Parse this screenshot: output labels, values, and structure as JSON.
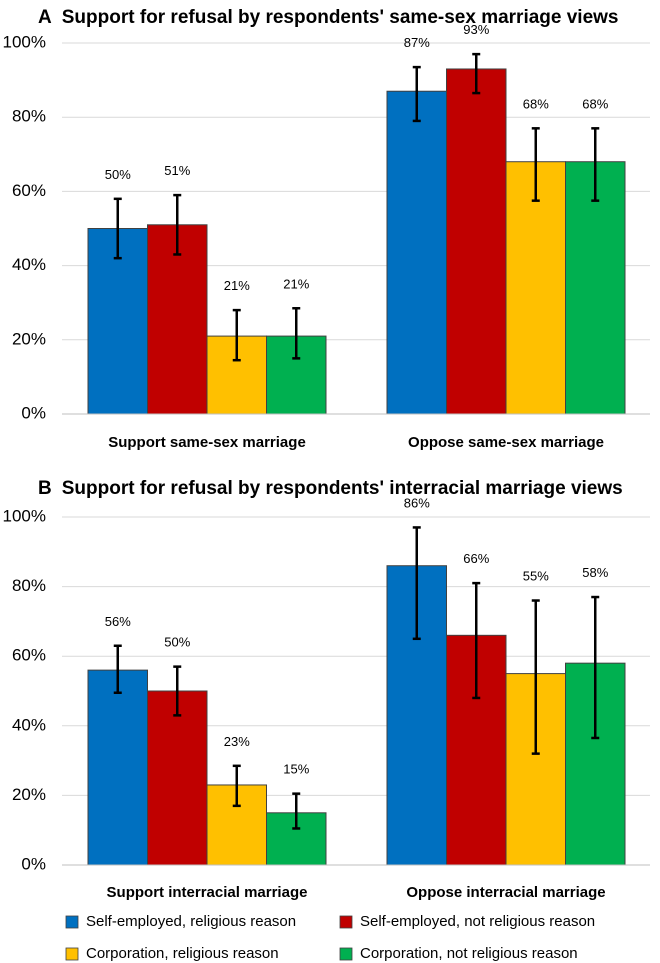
{
  "chart_data": [
    {
      "type": "bar",
      "panel_letter": "A",
      "title": "Support for refusal by respondents' same-sex marriage views",
      "categories": [
        "Support same-sex marriage",
        "Oppose same-sex marriage"
      ],
      "ylim": [
        0,
        100
      ],
      "yticks": [
        "0%",
        "20%",
        "40%",
        "60%",
        "80%",
        "100%"
      ],
      "grid": true,
      "series": [
        {
          "name": "Self-employed, religious reason",
          "values": [
            50,
            87
          ],
          "err_low": [
            42,
            79
          ],
          "err_high": [
            58,
            93.5
          ],
          "labels": [
            "50%",
            "87%"
          ]
        },
        {
          "name": "Self-employed, not religious reason",
          "values": [
            51,
            93
          ],
          "err_low": [
            43,
            86.5
          ],
          "err_high": [
            59,
            97
          ],
          "labels": [
            "51%",
            "93%"
          ]
        },
        {
          "name": "Corporation, religious reason",
          "values": [
            21,
            68
          ],
          "err_low": [
            14.5,
            57.5
          ],
          "err_high": [
            28,
            77
          ],
          "labels": [
            "21%",
            "68%"
          ]
        },
        {
          "name": "Corporation, not religious reason",
          "values": [
            21,
            68
          ],
          "err_low": [
            15,
            57.5
          ],
          "err_high": [
            28.5,
            77
          ],
          "labels": [
            "21%",
            "68%"
          ]
        }
      ]
    },
    {
      "type": "bar",
      "panel_letter": "B",
      "title": "Support for refusal by respondents' interracial marriage views",
      "categories": [
        "Support interracial marriage",
        "Oppose interracial marriage"
      ],
      "ylim": [
        0,
        100
      ],
      "yticks": [
        "0%",
        "20%",
        "40%",
        "60%",
        "80%",
        "100%"
      ],
      "grid": true,
      "series": [
        {
          "name": "Self-employed, religious reason",
          "values": [
            56,
            86
          ],
          "err_low": [
            49.5,
            65
          ],
          "err_high": [
            63,
            97
          ],
          "labels": [
            "56%",
            "86%"
          ]
        },
        {
          "name": "Self-employed, not religious reason",
          "values": [
            50,
            66
          ],
          "err_low": [
            43,
            48
          ],
          "err_high": [
            57,
            81
          ],
          "labels": [
            "50%",
            "66%"
          ]
        },
        {
          "name": "Corporation, religious reason",
          "values": [
            23,
            55
          ],
          "err_low": [
            17,
            32
          ],
          "err_high": [
            28.5,
            76
          ],
          "labels": [
            "23%",
            "55%"
          ]
        },
        {
          "name": "Corporation, not religious reason",
          "values": [
            15,
            58
          ],
          "err_low": [
            10.5,
            36.5
          ],
          "err_high": [
            20.5,
            77
          ],
          "labels": [
            "15%",
            "58%"
          ]
        }
      ]
    }
  ],
  "legend": {
    "placement": "bottom",
    "items": [
      {
        "label": "Self-employed, religious reason",
        "color": "#0070c0"
      },
      {
        "label": "Self-employed, not religious reason",
        "color": "#c00000"
      },
      {
        "label": "Corporation, religious reason",
        "color": "#ffc000"
      },
      {
        "label": "Corporation, not religious reason",
        "color": "#00b050"
      }
    ]
  }
}
